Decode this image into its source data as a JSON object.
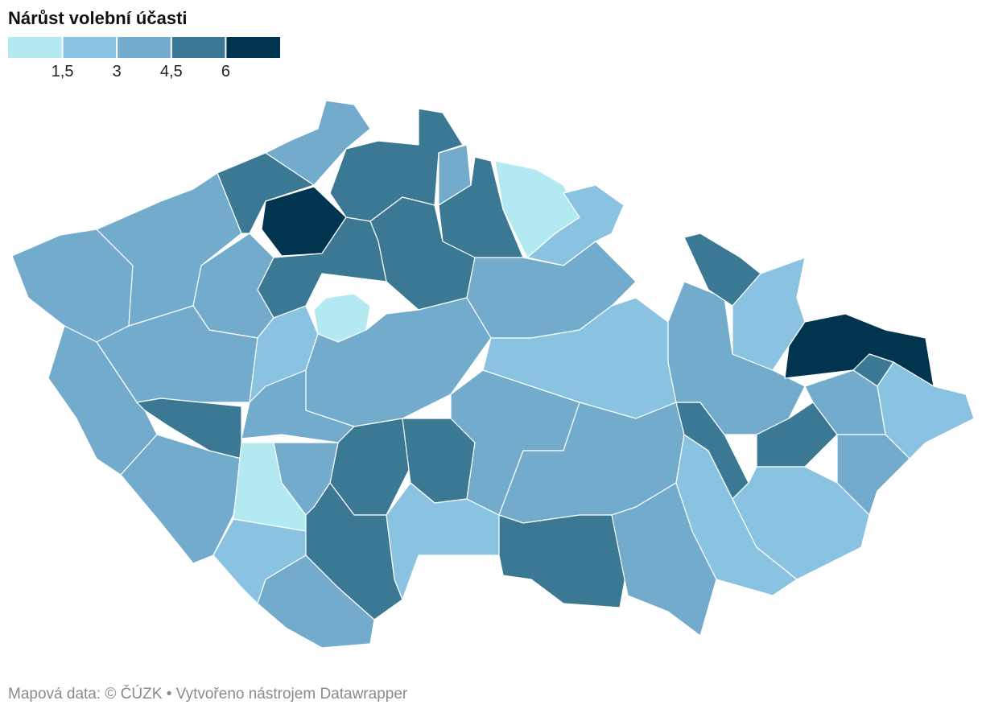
{
  "chart_data": {
    "type": "choropleth",
    "title": "Nárůst volební účasti",
    "legend": {
      "range": [
        0,
        7.5
      ],
      "colors": [
        "#b3e9f1",
        "#89c3e1",
        "#72abcc",
        "#3a7893",
        "#00344f"
      ],
      "ticks": [
        {
          "value": 1.5,
          "label": "1,5"
        },
        3,
        {
          "value": 4.5,
          "label": "4,5"
        },
        6
      ]
    },
    "regions": [
      4,
      4,
      5,
      6.5,
      4,
      5,
      4,
      5,
      1,
      2.5,
      5,
      5,
      1,
      4,
      4,
      4,
      5,
      2.5,
      4,
      4,
      5,
      5,
      4,
      1,
      4,
      2.5,
      4,
      5,
      2.5,
      4,
      2.5,
      4,
      4,
      5,
      4,
      2.5,
      5,
      4,
      5,
      2.5,
      6.5,
      5,
      2.5,
      4,
      5,
      4,
      2.5
    ],
    "footer": "Mapová data: © ČÚZK  • Vytvořeno nástrojem Datawrapper"
  }
}
